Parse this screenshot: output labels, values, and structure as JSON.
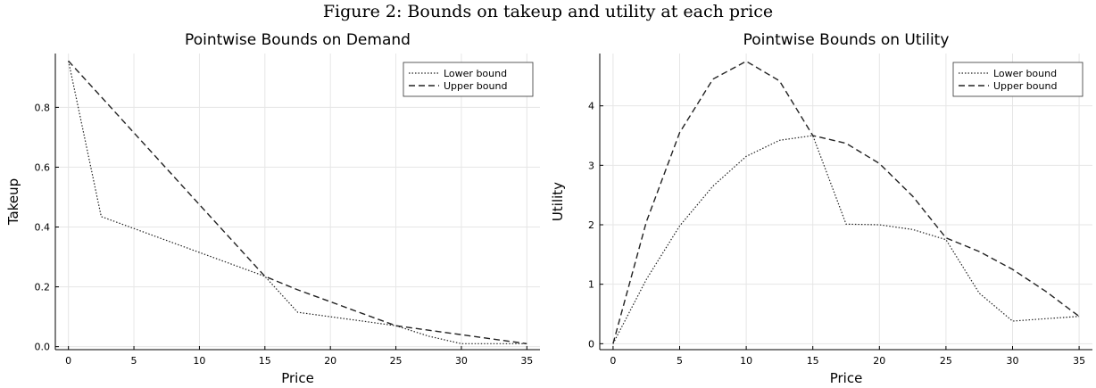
{
  "figure_caption": "Figure 2: Bounds on takeup and utility at each price",
  "chart_data": [
    {
      "type": "line",
      "title": "Pointwise Bounds on Demand",
      "xlabel": "Price",
      "ylabel": "Takeup",
      "xlim": [
        -1,
        36
      ],
      "ylim": [
        -0.01,
        0.98
      ],
      "xticks": [
        0,
        5,
        10,
        15,
        20,
        25,
        30,
        35
      ],
      "xtick_labels": [
        "0",
        "5",
        "10",
        "15",
        "20",
        "25",
        "30",
        "35"
      ],
      "yticks": [
        0.0,
        0.2,
        0.4,
        0.6,
        0.8
      ],
      "ytick_labels": [
        "0.0",
        "0.2",
        "0.4",
        "0.6",
        "0.8"
      ],
      "grid": true,
      "legend": "top-right",
      "x": [
        0,
        2.5,
        5,
        7.5,
        10,
        12.5,
        15,
        17.5,
        20,
        22.5,
        25,
        27.5,
        30,
        32.5,
        35
      ],
      "series": [
        {
          "name": "Lower bound",
          "style": "dotted",
          "values": [
            0.955,
            0.435,
            0.395,
            0.355,
            0.315,
            0.275,
            0.235,
            0.115,
            0.1,
            0.085,
            0.07,
            0.035,
            0.01,
            0.01,
            0.01
          ]
        },
        {
          "name": "Upper bound",
          "style": "dashed",
          "values": [
            0.955,
            0.835,
            0.715,
            0.595,
            0.475,
            0.355,
            0.235,
            0.19,
            0.15,
            0.11,
            0.07,
            0.055,
            0.04,
            0.025,
            0.01
          ]
        }
      ]
    },
    {
      "type": "line",
      "title": "Pointwise Bounds on Utility",
      "xlabel": "Price",
      "ylabel": "Utility",
      "xlim": [
        -1,
        36
      ],
      "ylim": [
        -0.1,
        4.88
      ],
      "xticks": [
        0,
        5,
        10,
        15,
        20,
        25,
        30,
        35
      ],
      "xtick_labels": [
        "0",
        "5",
        "10",
        "15",
        "20",
        "25",
        "30",
        "35"
      ],
      "yticks": [
        0,
        1,
        2,
        3,
        4
      ],
      "ytick_labels": [
        "0",
        "1",
        "2",
        "3",
        "4"
      ],
      "grid": true,
      "legend": "top-right",
      "x": [
        0,
        2.5,
        5,
        7.5,
        10,
        12.5,
        15,
        17.5,
        20,
        22.5,
        25,
        27.5,
        30,
        32.5,
        35
      ],
      "series": [
        {
          "name": "Lower bound",
          "style": "dotted",
          "values": [
            0.0,
            1.08,
            1.98,
            2.65,
            3.15,
            3.42,
            3.5,
            2.01,
            2.0,
            1.92,
            1.75,
            0.85,
            0.38,
            0.42,
            0.46
          ]
        },
        {
          "name": "Upper bound",
          "style": "dashed",
          "values": [
            0.0,
            2.05,
            3.55,
            4.45,
            4.75,
            4.42,
            3.5,
            3.37,
            3.03,
            2.48,
            1.78,
            1.55,
            1.25,
            0.88,
            0.46
          ]
        }
      ]
    }
  ]
}
